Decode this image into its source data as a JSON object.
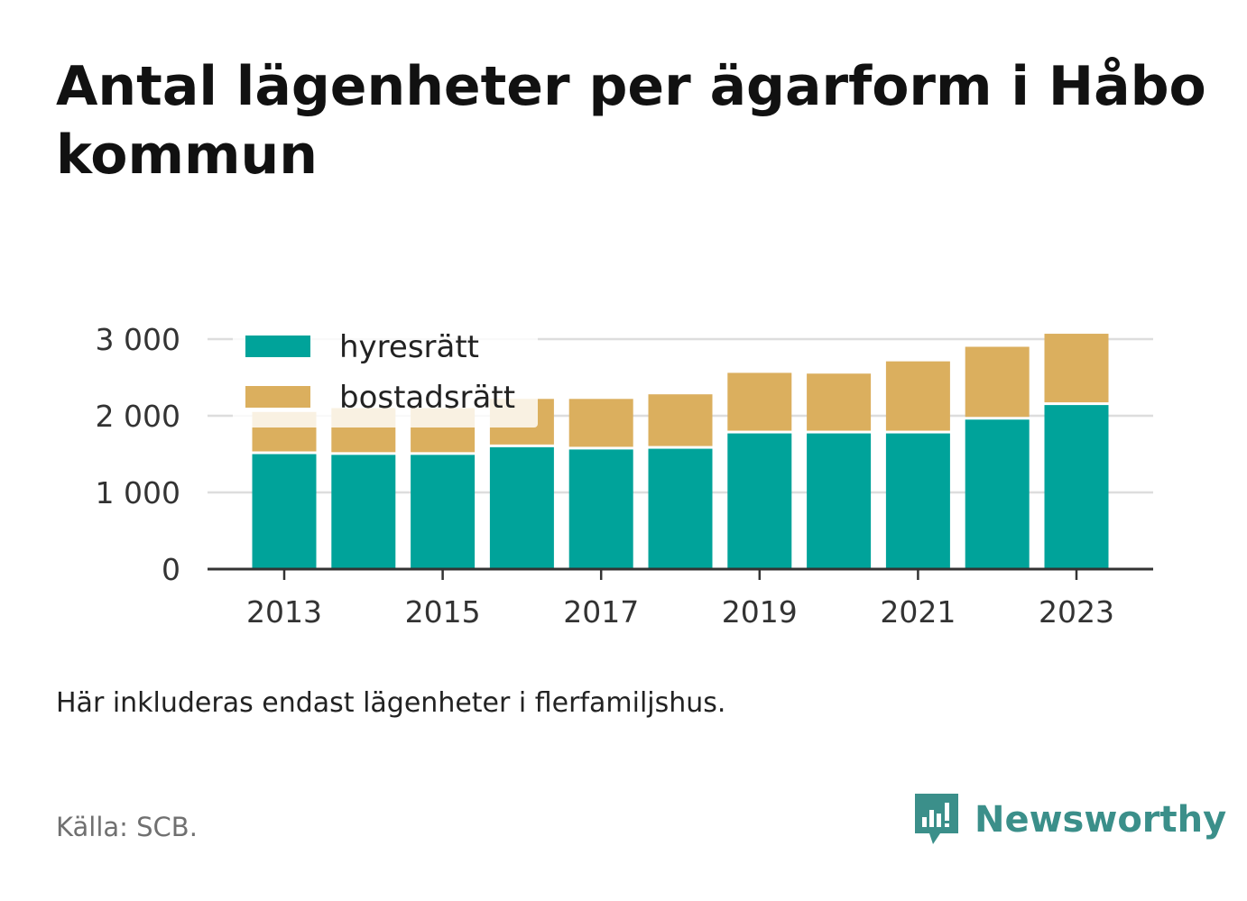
{
  "title": "Antal lägenheter per ägarform i Håbo kommun",
  "note": "Här inkluderas endast lägenheter i flerfamiljshus.",
  "source": "Källa: SCB.",
  "brand": {
    "name": "Newsworthy",
    "icon": "newsworthy-logo-icon",
    "color": "#3b8f8a"
  },
  "colors": {
    "hyresratt": "#00a39a",
    "bostadsratt": "#dbaf5e",
    "grid": "#dddddd",
    "axis": "#333333"
  },
  "chart_data": {
    "type": "bar",
    "stacked": true,
    "title": "Antal lägenheter per ägarform i Håbo kommun",
    "xlabel": "",
    "ylabel": "",
    "ylim": [
      0,
      3000
    ],
    "yticks": [
      0,
      1000,
      2000,
      3000
    ],
    "ytick_labels": [
      "0",
      "1 000",
      "2 000",
      "3 000"
    ],
    "categories": [
      2013,
      2014,
      2015,
      2016,
      2017,
      2018,
      2019,
      2020,
      2021,
      2022,
      2023
    ],
    "xtick_labels": [
      "2013",
      "2015",
      "2017",
      "2019",
      "2021",
      "2023"
    ],
    "grid": true,
    "legend": "top-left",
    "series": [
      {
        "name": "hyresrätt",
        "color": "#00a39a",
        "values": [
          1500,
          1490,
          1490,
          1590,
          1560,
          1570,
          1770,
          1770,
          1770,
          1950,
          2140
        ]
      },
      {
        "name": "bostadsrätt",
        "color": "#dbaf5e",
        "values": [
          550,
          610,
          610,
          630,
          660,
          710,
          790,
          780,
          940,
          950,
          930
        ]
      }
    ]
  }
}
